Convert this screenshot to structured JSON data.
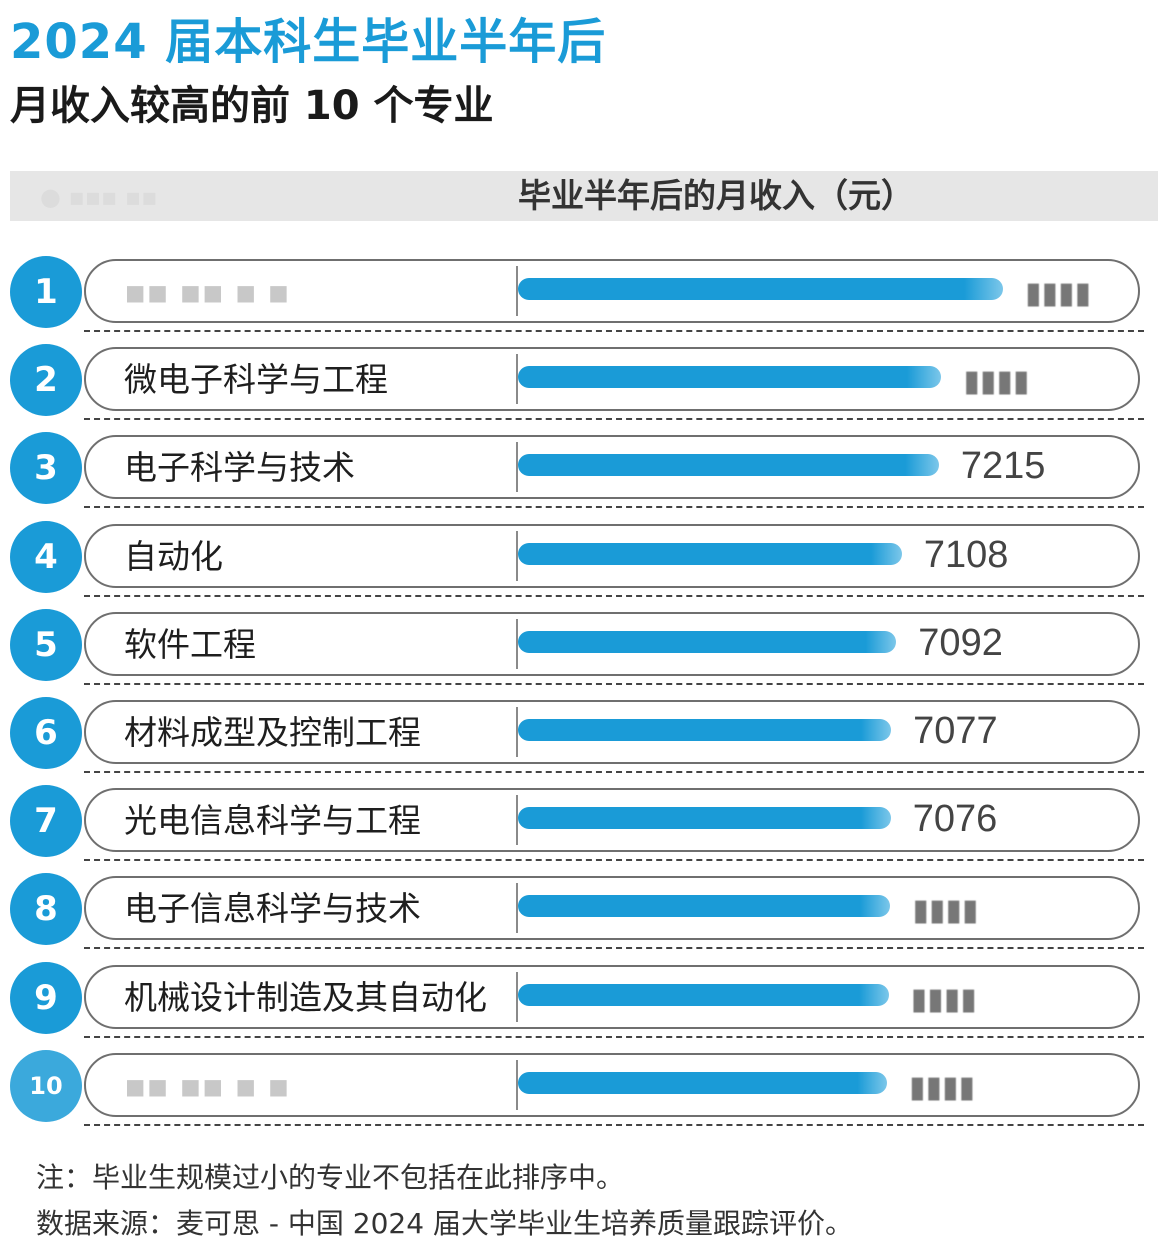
{
  "header": {
    "title_line1": "2024 届本科生毕业半年后",
    "title_line2": "月收入较高的前 10 个专业",
    "column_header": "毕业半年后的月收入（元）"
  },
  "notes": {
    "note": "注：毕业生规模过小的专业不包括在此排序中。",
    "source": "数据来源：麦可思 - 中国 2024 届大学毕业生培养质量跟踪评价。"
  },
  "colors": {
    "accent": "#1a9bd7",
    "bar": "#1a9bd7",
    "header_bg": "#e6e6e6"
  },
  "chart_data": {
    "type": "bar",
    "orientation": "horizontal",
    "title": "2024 届本科生毕业半年后 月收入较高的前 10 个专业",
    "xlabel": "毕业半年后的月收入（元）",
    "ranks": [
      "1",
      "2",
      "3",
      "4",
      "5",
      "6",
      "7",
      "8",
      "9",
      "10"
    ],
    "categories": [
      "",
      "微电子科学与工程",
      "电子科学与技术",
      "自动化",
      "软件工程",
      "材料成型及控制工程",
      "光电信息科学与工程",
      "电子信息科学与技术",
      "机械设计制造及其自动化",
      ""
    ],
    "value_labels": [
      "",
      "",
      "7215",
      "7108",
      "7092",
      "7077",
      "7076",
      "",
      "",
      ""
    ],
    "values": [
      7400,
      7222,
      7215,
      7108,
      7092,
      7077,
      7076,
      7075,
      7070,
      7065
    ],
    "xlim": [
      0,
      7400
    ],
    "grid": false,
    "legend": "none"
  }
}
